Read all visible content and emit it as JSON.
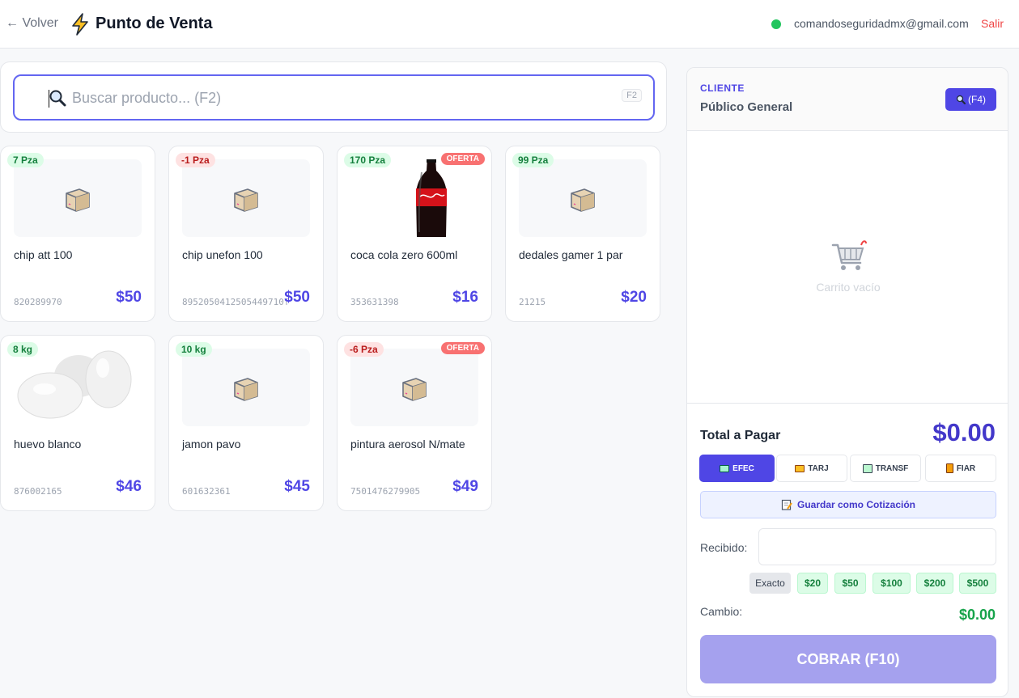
{
  "header": {
    "back_label": "← Volver",
    "title": "Punto de Venta",
    "user_email": "comandoseguridadmx@gmail.com",
    "logout_label": "Salir",
    "status_color": "#22c55e"
  },
  "search": {
    "placeholder": "Buscar producto... (F2)",
    "shortcut": "F2"
  },
  "products": [
    {
      "name": "chip att 100",
      "code": "820289970",
      "price": "$50",
      "stock": "7 Pza",
      "stock_status": "ok",
      "offer": "",
      "image": "box-icon"
    },
    {
      "name": "chip unefon 100",
      "code": "8952050412505449710f",
      "price": "$50",
      "stock": "-1 Pza",
      "stock_status": "negative",
      "offer": "",
      "image": "box-icon"
    },
    {
      "name": "coca cola zero 600ml",
      "code": "353631398",
      "price": "$16",
      "stock": "170 Pza",
      "stock_status": "ok",
      "offer": "OFERTA",
      "image": "soda-bottle-photo"
    },
    {
      "name": "dedales gamer 1 par",
      "code": "21215",
      "price": "$20",
      "stock": "99 Pza",
      "stock_status": "ok",
      "offer": "",
      "image": "box-icon"
    },
    {
      "name": "huevo blanco",
      "code": "876002165",
      "price": "$46",
      "stock": "8 kg",
      "stock_status": "ok",
      "offer": "",
      "image": "eggs-photo"
    },
    {
      "name": "jamon pavo",
      "code": "601632361",
      "price": "$45",
      "stock": "10 kg",
      "stock_status": "ok",
      "offer": "",
      "image": "box-icon"
    },
    {
      "name": "pintura aerosol N/mate",
      "code": "7501476279905",
      "price": "$49",
      "stock": "-6 Pza",
      "stock_status": "negative",
      "offer": "OFERTA",
      "image": "box-icon"
    }
  ],
  "client": {
    "label": "CLIENTE",
    "name": "Público General",
    "search_button": "(F4)"
  },
  "cart": {
    "empty_text": "Carrito vacío"
  },
  "checkout": {
    "total_label": "Total a Pagar",
    "total_value": "$0.00",
    "payment_methods": [
      "EFEC",
      "TARJ",
      "TRANSF",
      "FIAR"
    ],
    "active_method": "EFEC",
    "quote_button": "Guardar como Cotización",
    "received_label": "Recibido:",
    "received_value": "",
    "quick_amounts": [
      "Exacto",
      "$20",
      "$50",
      "$100",
      "$200",
      "$500"
    ],
    "change_label": "Cambio:",
    "change_value": "$0.00",
    "charge_button": "COBRAR (F10)"
  },
  "colors": {
    "accent": "#4f46e5",
    "offer": "#f87171",
    "stock_ok": "#15803d",
    "stock_negative": "#b91c1c",
    "change": "#16a34a"
  }
}
